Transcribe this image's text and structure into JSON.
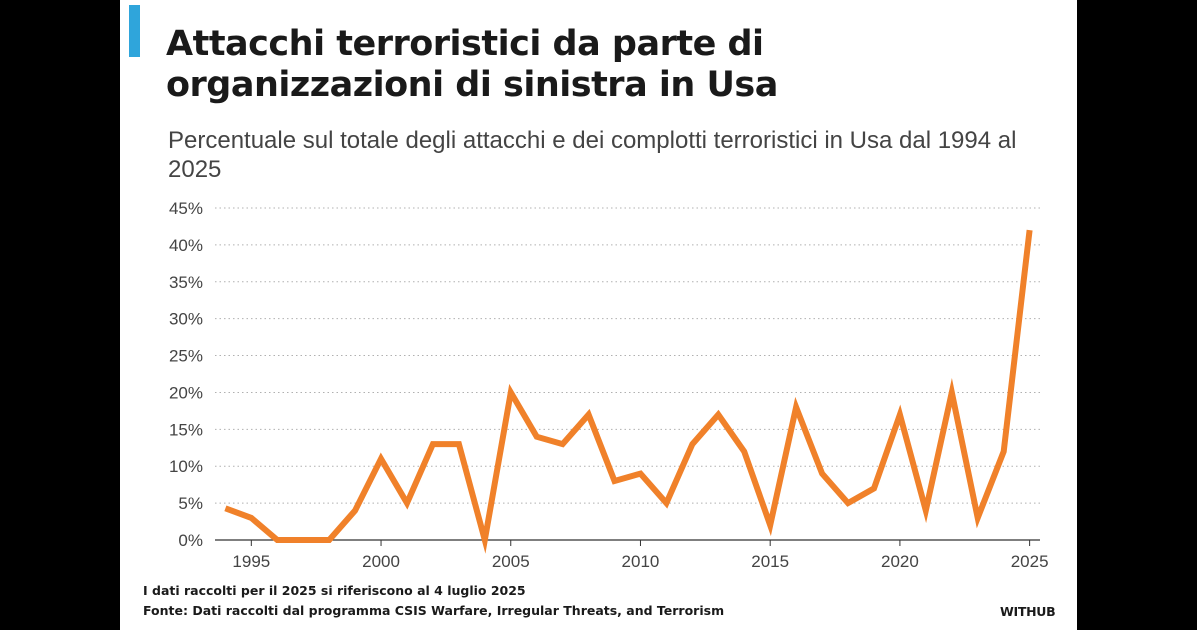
{
  "header": {
    "title": "Attacchi terroristici da parte di organizzazioni di sinistra in Usa",
    "subtitle": "Percentuale sul totale degli attacchi e dei complotti terroristici in Usa dal 1994 al 2025"
  },
  "footer": {
    "note": "I dati raccolti per il 2025 si riferiscono al 4 luglio 2025",
    "source": "Fonte: Dati raccolti dal programma CSIS Warfare, Irregular Threats, and Terrorism",
    "brand": "WITHUB"
  },
  "colors": {
    "line": "#f0812a",
    "accent": "#2fa5db",
    "grid": "#b0b0b0",
    "text": "#1a1a1a",
    "tick_text": "#444444",
    "background": "#ffffff"
  },
  "chart_data": {
    "type": "line",
    "title": "Attacchi terroristici da parte di organizzazioni di sinistra in Usa",
    "subtitle": "Percentuale sul totale degli attacchi e dei complotti terroristici in Usa dal 1994 al 2025",
    "xlabel": "",
    "ylabel": "",
    "x": [
      1994,
      1995,
      1996,
      1997,
      1998,
      1999,
      2000,
      2001,
      2002,
      2003,
      2004,
      2005,
      2006,
      2007,
      2008,
      2009,
      2010,
      2011,
      2012,
      2013,
      2014,
      2015,
      2016,
      2017,
      2018,
      2019,
      2020,
      2021,
      2022,
      2023,
      2024,
      2025
    ],
    "series": [
      {
        "values": [
          4.3,
          3,
          0,
          0,
          0,
          4,
          11,
          5,
          13,
          13,
          0,
          20,
          14,
          13,
          17,
          8,
          9,
          5,
          13,
          17,
          12,
          2,
          18,
          9,
          5,
          7,
          17,
          4,
          20,
          3,
          12,
          42
        ]
      }
    ],
    "xlim": [
      1993.6,
      2025.4
    ],
    "ylim": [
      0,
      45
    ],
    "y_ticks": [
      0,
      5,
      10,
      15,
      20,
      25,
      30,
      35,
      40,
      45
    ],
    "y_tick_labels": [
      "0%",
      "5%",
      "10%",
      "15%",
      "20%",
      "25%",
      "30%",
      "35%",
      "40%",
      "45%"
    ],
    "x_ticks": [
      1995,
      2000,
      2005,
      2010,
      2015,
      2020,
      2025
    ],
    "x_tick_labels": [
      "1995",
      "2000",
      "2005",
      "2010",
      "2015",
      "2020",
      "2025"
    ],
    "grid": "horizontal dotted",
    "legend": "none"
  }
}
